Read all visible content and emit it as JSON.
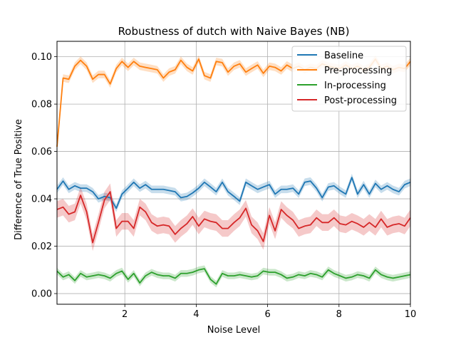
{
  "chart_data": {
    "type": "line",
    "title": "Robustness of dutch with Naive Bayes (NB)",
    "xlabel": "Noise Level",
    "ylabel": "Difference of True Positive",
    "xlim": [
      0.1,
      10
    ],
    "ylim": [
      -0.0045,
      0.1065
    ],
    "xticks": [
      2,
      4,
      6,
      8,
      10
    ],
    "yticks": [
      0.0,
      0.02,
      0.04,
      0.06,
      0.08,
      0.1
    ],
    "ytick_labels": [
      "0.00",
      "0.02",
      "0.04",
      "0.06",
      "0.08",
      "0.10"
    ],
    "grid": true,
    "legend_position": "top-right",
    "x": [
      0.1,
      0.27,
      0.43,
      0.6,
      0.76,
      0.93,
      1.1,
      1.26,
      1.43,
      1.59,
      1.76,
      1.92,
      2.09,
      2.25,
      2.42,
      2.58,
      2.75,
      2.91,
      3.08,
      3.24,
      3.41,
      3.57,
      3.74,
      3.9,
      4.07,
      4.23,
      4.4,
      4.56,
      4.73,
      4.89,
      5.06,
      5.22,
      5.39,
      5.55,
      5.72,
      5.88,
      6.05,
      6.21,
      6.38,
      6.54,
      6.71,
      6.87,
      7.04,
      7.2,
      7.37,
      7.53,
      7.7,
      7.86,
      8.03,
      8.19,
      8.36,
      8.52,
      8.69,
      8.85,
      9.02,
      9.18,
      9.35,
      9.51,
      9.68,
      9.84,
      10.0
    ],
    "series": [
      {
        "name": "Baseline",
        "color": "#1f77b4",
        "band": 0.0016,
        "values": [
          0.044,
          0.0475,
          0.044,
          0.0455,
          0.0445,
          0.0445,
          0.043,
          0.04,
          0.041,
          0.0405,
          0.036,
          0.042,
          0.0445,
          0.047,
          0.0445,
          0.046,
          0.044,
          0.044,
          0.044,
          0.0435,
          0.043,
          0.0405,
          0.041,
          0.0425,
          0.0445,
          0.047,
          0.045,
          0.043,
          0.047,
          0.043,
          0.041,
          0.039,
          0.047,
          0.0455,
          0.044,
          0.045,
          0.046,
          0.042,
          0.044,
          0.044,
          0.0445,
          0.042,
          0.047,
          0.0475,
          0.0445,
          0.0405,
          0.045,
          0.0455,
          0.0435,
          0.042,
          0.049,
          0.042,
          0.046,
          0.042,
          0.0465,
          0.044,
          0.0455,
          0.044,
          0.043,
          0.046,
          0.047
        ]
      },
      {
        "name": "Pre-processing",
        "color": "#ff7f0e",
        "band": 0.0016,
        "values": [
          0.062,
          0.091,
          0.0905,
          0.096,
          0.0985,
          0.096,
          0.0905,
          0.0925,
          0.0925,
          0.0885,
          0.095,
          0.098,
          0.0955,
          0.098,
          0.096,
          0.0955,
          0.095,
          0.0945,
          0.091,
          0.0935,
          0.0945,
          0.0985,
          0.0955,
          0.094,
          0.099,
          0.092,
          0.091,
          0.098,
          0.0975,
          0.0935,
          0.096,
          0.097,
          0.0935,
          0.095,
          0.0965,
          0.093,
          0.096,
          0.0955,
          0.094,
          0.0965,
          0.095,
          0.096,
          0.0945,
          0.0955,
          0.095,
          0.097,
          0.096,
          0.0955,
          0.095,
          0.0965,
          0.095,
          0.096,
          0.0945,
          0.0955,
          0.099,
          0.095,
          0.096,
          0.0945,
          0.0955,
          0.095,
          0.098
        ]
      },
      {
        "name": "In-processing",
        "color": "#2ca02c",
        "band": 0.0014,
        "values": [
          0.0095,
          0.007,
          0.008,
          0.0055,
          0.0085,
          0.007,
          0.0075,
          0.008,
          0.0075,
          0.0065,
          0.0085,
          0.0095,
          0.006,
          0.0085,
          0.0045,
          0.0075,
          0.009,
          0.008,
          0.0075,
          0.0075,
          0.0065,
          0.0085,
          0.0085,
          0.009,
          0.01,
          0.0105,
          0.006,
          0.004,
          0.0085,
          0.0075,
          0.0075,
          0.008,
          0.0075,
          0.007,
          0.0075,
          0.0095,
          0.009,
          0.009,
          0.008,
          0.0065,
          0.007,
          0.008,
          0.0075,
          0.0085,
          0.008,
          0.007,
          0.01,
          0.0085,
          0.0075,
          0.0065,
          0.007,
          0.008,
          0.0075,
          0.0065,
          0.01,
          0.008,
          0.007,
          0.0065,
          0.007,
          0.0075,
          0.008
        ]
      },
      {
        "name": "Post-processing",
        "color": "#d62728",
        "band": 0.0035,
        "values": [
          0.0355,
          0.0365,
          0.0335,
          0.0345,
          0.0415,
          0.0345,
          0.0215,
          0.03,
          0.0395,
          0.043,
          0.0275,
          0.0305,
          0.0305,
          0.0275,
          0.0365,
          0.0345,
          0.03,
          0.0285,
          0.029,
          0.0285,
          0.025,
          0.0275,
          0.0295,
          0.0325,
          0.0285,
          0.0315,
          0.0305,
          0.03,
          0.0275,
          0.0275,
          0.03,
          0.032,
          0.036,
          0.029,
          0.0265,
          0.022,
          0.033,
          0.0265,
          0.0355,
          0.033,
          0.031,
          0.0275,
          0.0285,
          0.029,
          0.032,
          0.03,
          0.03,
          0.032,
          0.0295,
          0.029,
          0.0305,
          0.0295,
          0.028,
          0.03,
          0.028,
          0.0315,
          0.028,
          0.029,
          0.0295,
          0.0285,
          0.032
        ]
      }
    ]
  }
}
